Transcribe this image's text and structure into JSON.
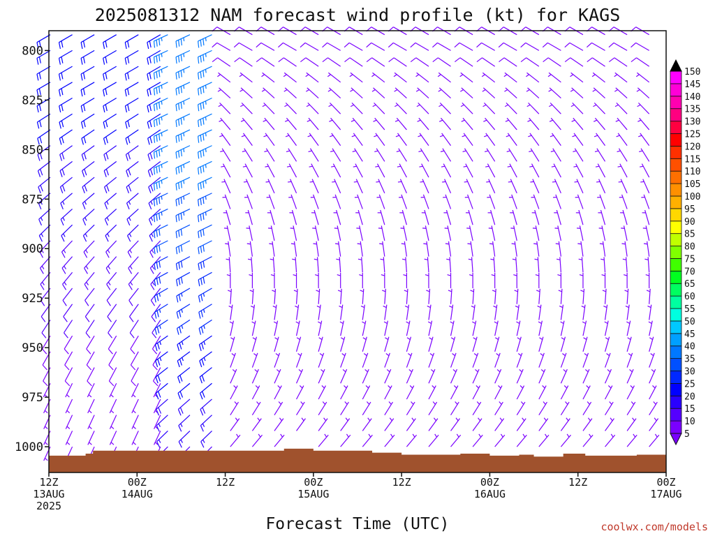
{
  "chart_data": {
    "type": "wind-barb-profile",
    "title": "2025081312 NAM forecast wind profile (kt) for KAGS",
    "xlabel": "Forecast Time (UTC)",
    "ylabel": "",
    "y_ticks": [
      800,
      825,
      850,
      875,
      900,
      925,
      950,
      975,
      1000
    ],
    "ylim": [
      1013,
      790
    ],
    "x_ticks": [
      {
        "l1": "12Z",
        "l2": "13AUG",
        "l3": "2025"
      },
      {
        "l1": "00Z",
        "l2": "14AUG",
        "l3": ""
      },
      {
        "l1": "12Z",
        "l2": "",
        "l3": ""
      },
      {
        "l1": "00Z",
        "l2": "15AUG",
        "l3": ""
      },
      {
        "l1": "12Z",
        "l2": "",
        "l3": ""
      },
      {
        "l1": "00Z",
        "l2": "16AUG",
        "l3": ""
      },
      {
        "l1": "12Z",
        "l2": "",
        "l3": ""
      },
      {
        "l1": "00Z",
        "l2": "17AUG",
        "l3": ""
      }
    ],
    "forecast_hours_range": [
      0,
      84
    ],
    "colorbar": {
      "labels": [
        5,
        10,
        15,
        20,
        25,
        30,
        35,
        40,
        45,
        50,
        55,
        60,
        65,
        70,
        75,
        80,
        85,
        90,
        95,
        100,
        105,
        110,
        115,
        120,
        125,
        130,
        135,
        140,
        145,
        150
      ],
      "colors": [
        "#7a00ff",
        "#5500ff",
        "#2a00ff",
        "#0000ff",
        "#0028ff",
        "#0050ff",
        "#0078ff",
        "#00a0ff",
        "#00c8ff",
        "#00ffe0",
        "#00ffa0",
        "#00ff60",
        "#00ff20",
        "#40ff00",
        "#80ff00",
        "#c0ff00",
        "#ffff00",
        "#ffd800",
        "#ffb000",
        "#ff9000",
        "#ff7000",
        "#ff5000",
        "#ff3000",
        "#ff0000",
        "#ff0040",
        "#ff0080",
        "#ff00b0",
        "#ff00d8",
        "#ff00ff",
        "#e000ff"
      ]
    },
    "terrain_color": "#a0522d",
    "segments": [
      {
        "h0": 0,
        "h1": 15.5,
        "rows": [
          [
            800,
            240,
            22
          ],
          [
            810,
            240,
            21
          ],
          [
            820,
            240,
            21
          ],
          [
            830,
            238,
            20
          ],
          [
            840,
            236,
            20
          ],
          [
            850,
            234,
            19
          ],
          [
            860,
            232,
            18
          ],
          [
            870,
            230,
            17
          ],
          [
            880,
            228,
            16
          ],
          [
            890,
            225,
            15
          ],
          [
            900,
            222,
            14
          ],
          [
            910,
            220,
            13
          ],
          [
            920,
            218,
            12
          ],
          [
            930,
            215,
            11
          ],
          [
            940,
            212,
            10
          ],
          [
            950,
            210,
            9
          ],
          [
            960,
            208,
            8
          ],
          [
            970,
            206,
            7
          ],
          [
            980,
            205,
            6
          ],
          [
            990,
            205,
            5
          ],
          [
            1000,
            205,
            5
          ]
        ]
      },
      {
        "h0": 16,
        "h1": 24,
        "rows": [
          [
            800,
            245,
            35
          ],
          [
            810,
            245,
            36
          ],
          [
            820,
            245,
            36
          ],
          [
            830,
            245,
            36
          ],
          [
            840,
            245,
            37
          ],
          [
            850,
            245,
            37
          ],
          [
            860,
            245,
            36
          ],
          [
            870,
            245,
            35
          ],
          [
            880,
            245,
            34
          ],
          [
            890,
            244,
            32
          ],
          [
            900,
            243,
            30
          ],
          [
            910,
            242,
            28
          ],
          [
            920,
            240,
            27
          ],
          [
            930,
            238,
            26
          ],
          [
            940,
            236,
            25
          ],
          [
            950,
            234,
            24
          ],
          [
            960,
            232,
            22
          ],
          [
            970,
            230,
            20
          ],
          [
            980,
            228,
            18
          ],
          [
            990,
            226,
            16
          ],
          [
            1000,
            225,
            14
          ]
        ]
      },
      {
        "h0": 24.5,
        "h1": 84,
        "rows": [
          [
            800,
            300,
            8
          ],
          [
            810,
            305,
            8
          ],
          [
            820,
            310,
            7
          ],
          [
            830,
            315,
            7
          ],
          [
            840,
            320,
            7
          ],
          [
            850,
            325,
            6
          ],
          [
            860,
            330,
            6
          ],
          [
            870,
            335,
            6
          ],
          [
            880,
            340,
            5
          ],
          [
            890,
            345,
            5
          ],
          [
            900,
            350,
            5
          ],
          [
            910,
            355,
            5
          ],
          [
            920,
            360,
            5
          ],
          [
            930,
            5,
            5
          ],
          [
            940,
            10,
            5
          ],
          [
            950,
            15,
            5
          ],
          [
            960,
            20,
            5
          ],
          [
            970,
            25,
            5
          ],
          [
            980,
            30,
            5
          ],
          [
            990,
            35,
            5
          ],
          [
            1000,
            40,
            5
          ]
        ]
      }
    ],
    "terrain": [
      [
        0,
        1004.5
      ],
      [
        5,
        1003.5
      ],
      [
        6,
        1002
      ],
      [
        22,
        1002
      ],
      [
        30,
        1002
      ],
      [
        32,
        1001
      ],
      [
        36,
        1002
      ],
      [
        44,
        1003
      ],
      [
        48,
        1004
      ],
      [
        56,
        1003.5
      ],
      [
        60,
        1004.5
      ],
      [
        64,
        1004
      ],
      [
        66,
        1005
      ],
      [
        70,
        1003.5
      ],
      [
        73,
        1004.5
      ],
      [
        80,
        1004
      ],
      [
        84,
        1004
      ]
    ]
  },
  "credit": "coolwx.com/models"
}
